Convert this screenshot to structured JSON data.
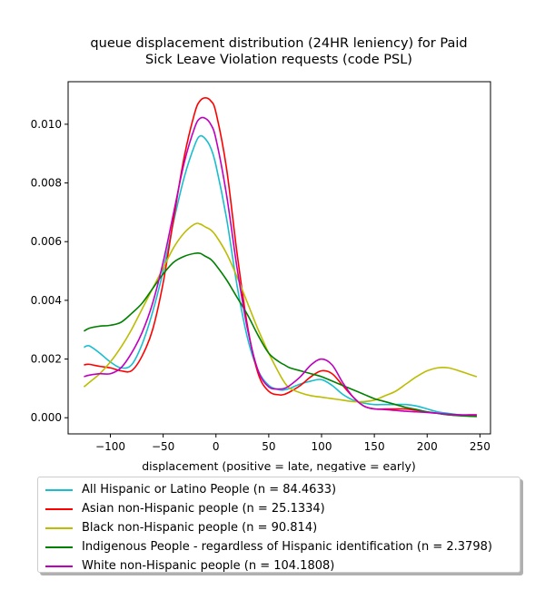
{
  "chart_data": {
    "type": "line",
    "title": "queue displacement distribution (24HR leniency) for Paid\nSick Leave Violation  requests (code PSL)",
    "xlabel": "displacement (positive = late, negative = early)",
    "ylabel": "",
    "xlim": [
      -140,
      260
    ],
    "ylim": [
      -0.00055,
      0.01145
    ],
    "xticks": [
      -100,
      -50,
      0,
      50,
      100,
      150,
      200,
      250
    ],
    "xtick_labels": [
      "−100",
      "−50",
      "0",
      "50",
      "100",
      "150",
      "200",
      "250"
    ],
    "yticks": [
      0.0,
      0.002,
      0.004,
      0.006,
      0.008,
      0.01
    ],
    "ytick_labels": [
      "0.000",
      "0.002",
      "0.004",
      "0.006",
      "0.008",
      "0.010"
    ],
    "grid": false,
    "legend_position": "below",
    "x": [
      -125,
      -120,
      -110,
      -100,
      -90,
      -80,
      -70,
      -60,
      -50,
      -40,
      -30,
      -20,
      -15,
      -10,
      -5,
      0,
      10,
      20,
      30,
      40,
      50,
      60,
      65,
      70,
      80,
      90,
      100,
      110,
      120,
      130,
      140,
      150,
      160,
      170,
      180,
      190,
      200,
      210,
      220,
      230,
      240,
      247
    ],
    "series": [
      {
        "name": "All Hispanic or Latino People (n = 84.4633)",
        "color": "#17becf",
        "values": [
          0.0024,
          0.00245,
          0.0022,
          0.0019,
          0.0017,
          0.0018,
          0.0025,
          0.0036,
          0.005,
          0.0067,
          0.0082,
          0.0093,
          0.0096,
          0.0095,
          0.0092,
          0.0086,
          0.0068,
          0.0045,
          0.0027,
          0.0016,
          0.0011,
          0.00095,
          0.00095,
          0.001,
          0.00115,
          0.00125,
          0.0013,
          0.0011,
          0.0008,
          0.0006,
          0.0005,
          0.00045,
          0.00045,
          0.00045,
          0.00045,
          0.0004,
          0.0003,
          0.0002,
          0.00015,
          0.0001,
          8e-05,
          8e-05
        ]
      },
      {
        "name": "Asian non-Hispanic people (n = 25.1334)",
        "color": "#ff0000",
        "values": [
          0.0018,
          0.00182,
          0.00175,
          0.0017,
          0.0016,
          0.0016,
          0.0021,
          0.003,
          0.0046,
          0.0068,
          0.0089,
          0.0104,
          0.0108,
          0.0109,
          0.0108,
          0.0104,
          0.0085,
          0.0056,
          0.0031,
          0.0015,
          0.0009,
          0.00078,
          0.0008,
          0.00088,
          0.0011,
          0.0014,
          0.0016,
          0.0015,
          0.0011,
          0.0007,
          0.0004,
          0.0003,
          0.0003,
          0.0003,
          0.0003,
          0.00025,
          0.0002,
          0.00015,
          0.0001,
          8e-05,
          6e-05,
          6e-05
        ]
      },
      {
        "name": "Black non-Hispanic people (n = 90.814)",
        "color": "#bcbd00",
        "values": [
          0.00105,
          0.0012,
          0.0015,
          0.0019,
          0.0024,
          0.003,
          0.0037,
          0.0044,
          0.0051,
          0.0058,
          0.0063,
          0.0066,
          0.0066,
          0.0065,
          0.0064,
          0.0062,
          0.0056,
          0.0048,
          0.0039,
          0.003,
          0.0022,
          0.0015,
          0.0012,
          0.001,
          0.00085,
          0.00075,
          0.0007,
          0.00065,
          0.0006,
          0.00055,
          0.00055,
          0.0006,
          0.00075,
          0.0009,
          0.00115,
          0.0014,
          0.0016,
          0.0017,
          0.0017,
          0.0016,
          0.00148,
          0.0014
        ]
      },
      {
        "name": "Indigenous People - regardless of Hispanic identification (n = 2.3798)",
        "color": "#008000",
        "values": [
          0.00295,
          0.00305,
          0.00312,
          0.00315,
          0.00325,
          0.00355,
          0.0039,
          0.0044,
          0.0049,
          0.0053,
          0.0055,
          0.0056,
          0.0056,
          0.0055,
          0.0054,
          0.0052,
          0.0047,
          0.0041,
          0.0035,
          0.0028,
          0.0022,
          0.0019,
          0.0018,
          0.0017,
          0.0016,
          0.0015,
          0.0014,
          0.00125,
          0.0011,
          0.00095,
          0.0008,
          0.00065,
          0.00055,
          0.00045,
          0.00035,
          0.00028,
          0.0002,
          0.00015,
          0.0001,
          7e-05,
          5e-05,
          4e-05
        ]
      },
      {
        "name": "White non-Hispanic people (n = 104.1808)",
        "color": "#bf00bf",
        "values": [
          0.0014,
          0.00145,
          0.0015,
          0.0015,
          0.0017,
          0.0022,
          0.0029,
          0.0039,
          0.0053,
          0.007,
          0.0087,
          0.0099,
          0.0102,
          0.0102,
          0.01,
          0.0095,
          0.0076,
          0.0051,
          0.003,
          0.0016,
          0.00105,
          0.00098,
          0.001,
          0.0011,
          0.0014,
          0.0018,
          0.002,
          0.0018,
          0.0012,
          0.0007,
          0.0004,
          0.0003,
          0.00028,
          0.00025,
          0.00022,
          0.0002,
          0.00018,
          0.00015,
          0.00012,
          0.0001,
          0.0001,
          0.0001
        ]
      }
    ]
  }
}
